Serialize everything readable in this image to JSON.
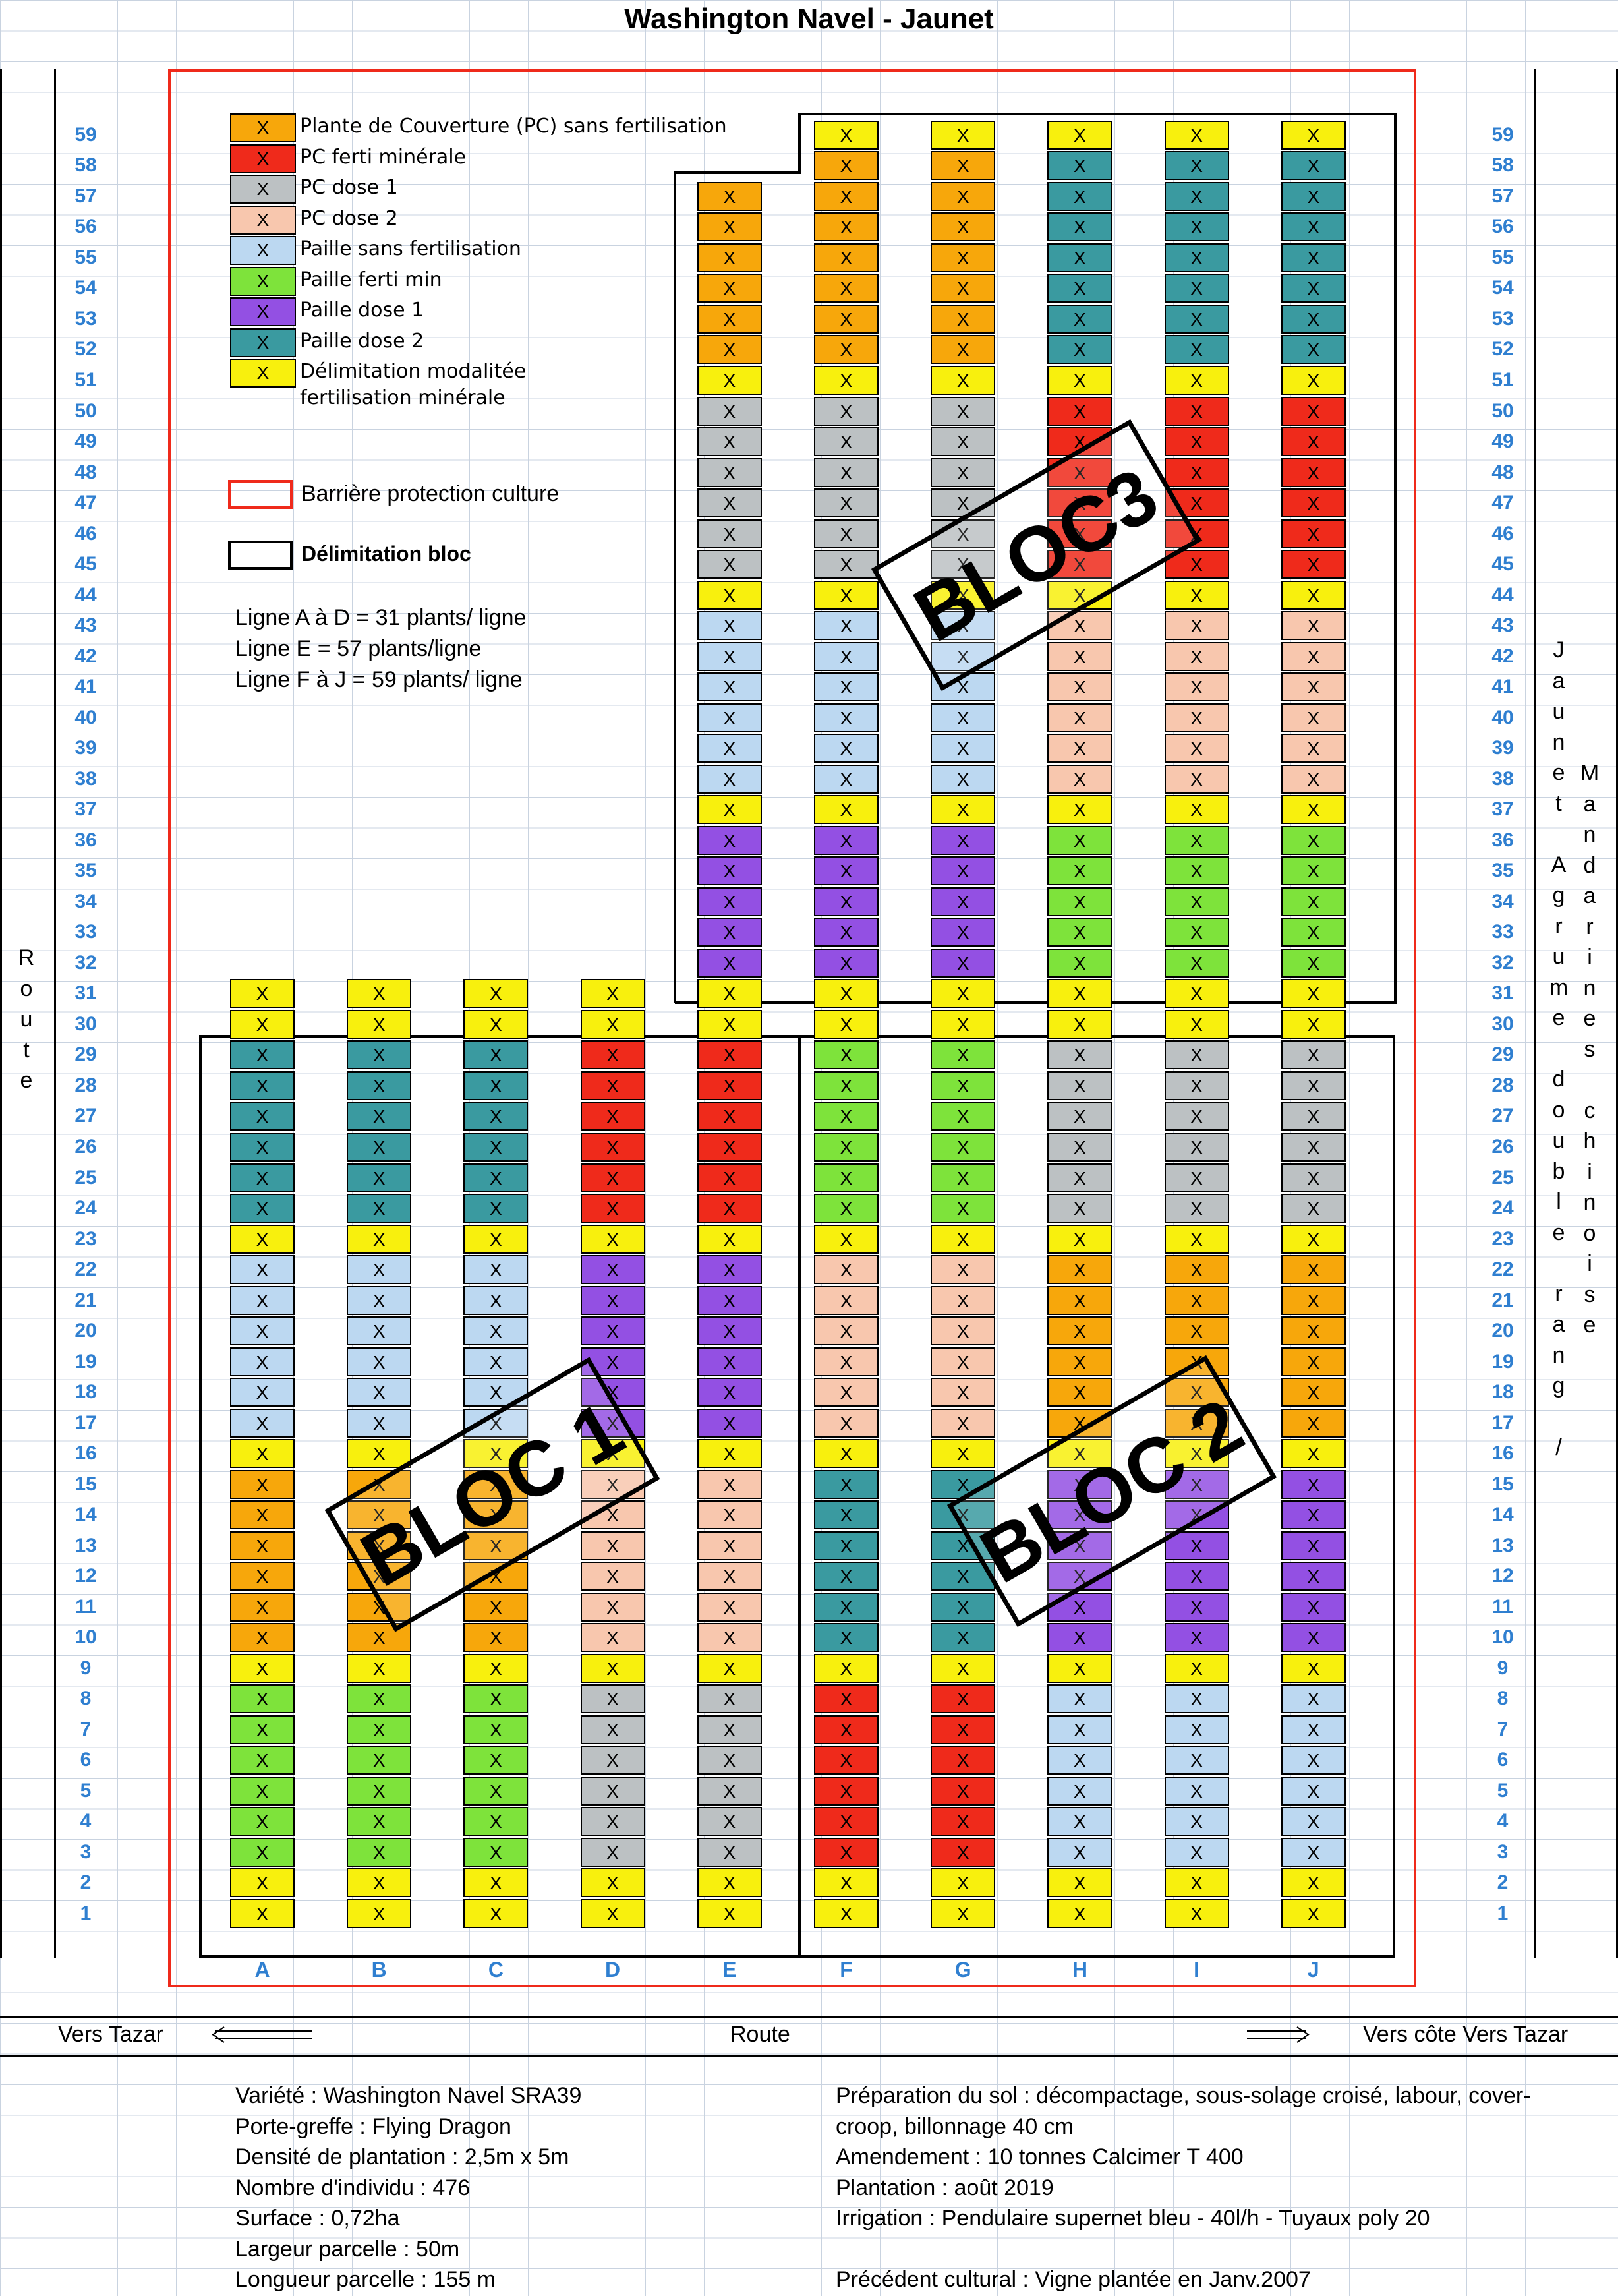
{
  "title": "Washington Navel - Jaunet",
  "colors": {
    "orange": "#f7a70b",
    "red": "#ef2a1b",
    "grey": "#bcc1c3",
    "peach": "#f8c7ae",
    "lightblue": "#bcd8f1",
    "green": "#7ee33b",
    "purple": "#9350e3",
    "teal": "#3a9aa0",
    "yellow": "#f8f00d"
  },
  "legend": [
    {
      "color": "orange",
      "mark": "X",
      "label": "Plante de Couverture (PC) sans fertilisation"
    },
    {
      "color": "red",
      "mark": "X",
      "label": "PC ferti minérale"
    },
    {
      "color": "grey",
      "mark": "X",
      "label": "PC dose 1"
    },
    {
      "color": "peach",
      "mark": "X",
      "label": "PC dose 2"
    },
    {
      "color": "lightblue",
      "mark": "X",
      "label": "Paille sans fertilisation"
    },
    {
      "color": "green",
      "mark": "X",
      "label": "Paille ferti min"
    },
    {
      "color": "purple",
      "mark": "X",
      "label": "Paille dose 1"
    },
    {
      "color": "teal",
      "mark": "X",
      "label": "Paille dose 2"
    },
    {
      "color": "yellow",
      "mark": "X",
      "label": "Délimitation modalitée"
    }
  ],
  "legend_extra": "fertilisation minérale",
  "barrier_label": "Barrière protection culture",
  "bloc_label": "Délimitation bloc",
  "notes": [
    "Ligne A à D = 31 plants/ ligne",
    "Ligne E = 57 plants/ligne",
    "Ligne F à J = 59 plants/ ligne"
  ],
  "bloc_names": [
    "BLOC 1",
    "BLOC 2",
    "BLOC3"
  ],
  "cell_mark": "X",
  "columns": [
    {
      "name": "A",
      "segments": [
        [
          1,
          2,
          "yellow"
        ],
        [
          3,
          8,
          "green"
        ],
        [
          9,
          9,
          "yellow"
        ],
        [
          10,
          15,
          "orange"
        ],
        [
          16,
          16,
          "yellow"
        ],
        [
          17,
          22,
          "lightblue"
        ],
        [
          23,
          23,
          "yellow"
        ],
        [
          24,
          29,
          "teal"
        ],
        [
          30,
          31,
          "yellow"
        ]
      ]
    },
    {
      "name": "B",
      "segments": [
        [
          1,
          2,
          "yellow"
        ],
        [
          3,
          8,
          "green"
        ],
        [
          9,
          9,
          "yellow"
        ],
        [
          10,
          15,
          "orange"
        ],
        [
          16,
          16,
          "yellow"
        ],
        [
          17,
          22,
          "lightblue"
        ],
        [
          23,
          23,
          "yellow"
        ],
        [
          24,
          29,
          "teal"
        ],
        [
          30,
          31,
          "yellow"
        ]
      ]
    },
    {
      "name": "C",
      "segments": [
        [
          1,
          2,
          "yellow"
        ],
        [
          3,
          8,
          "green"
        ],
        [
          9,
          9,
          "yellow"
        ],
        [
          10,
          15,
          "orange"
        ],
        [
          16,
          16,
          "yellow"
        ],
        [
          17,
          22,
          "lightblue"
        ],
        [
          23,
          23,
          "yellow"
        ],
        [
          24,
          29,
          "teal"
        ],
        [
          30,
          31,
          "yellow"
        ]
      ]
    },
    {
      "name": "D",
      "segments": [
        [
          1,
          2,
          "yellow"
        ],
        [
          3,
          8,
          "grey"
        ],
        [
          9,
          9,
          "yellow"
        ],
        [
          10,
          15,
          "peach"
        ],
        [
          16,
          16,
          "yellow"
        ],
        [
          17,
          22,
          "purple"
        ],
        [
          23,
          23,
          "yellow"
        ],
        [
          24,
          29,
          "red"
        ],
        [
          30,
          31,
          "yellow"
        ]
      ]
    },
    {
      "name": "E",
      "segments": [
        [
          1,
          2,
          "yellow"
        ],
        [
          3,
          8,
          "grey"
        ],
        [
          9,
          9,
          "yellow"
        ],
        [
          10,
          15,
          "peach"
        ],
        [
          16,
          16,
          "yellow"
        ],
        [
          17,
          22,
          "purple"
        ],
        [
          23,
          23,
          "yellow"
        ],
        [
          24,
          29,
          "red"
        ],
        [
          30,
          31,
          "yellow"
        ],
        [
          32,
          36,
          "purple"
        ],
        [
          37,
          37,
          "yellow"
        ],
        [
          38,
          43,
          "lightblue"
        ],
        [
          44,
          44,
          "yellow"
        ],
        [
          45,
          50,
          "grey"
        ],
        [
          51,
          51,
          "yellow"
        ],
        [
          52,
          57,
          "orange"
        ]
      ]
    },
    {
      "name": "F",
      "segments": [
        [
          1,
          2,
          "yellow"
        ],
        [
          3,
          8,
          "red"
        ],
        [
          9,
          9,
          "yellow"
        ],
        [
          10,
          15,
          "teal"
        ],
        [
          16,
          16,
          "yellow"
        ],
        [
          17,
          22,
          "peach"
        ],
        [
          23,
          23,
          "yellow"
        ],
        [
          24,
          29,
          "green"
        ],
        [
          30,
          31,
          "yellow"
        ],
        [
          32,
          36,
          "purple"
        ],
        [
          37,
          37,
          "yellow"
        ],
        [
          38,
          43,
          "lightblue"
        ],
        [
          44,
          44,
          "yellow"
        ],
        [
          45,
          50,
          "grey"
        ],
        [
          51,
          51,
          "yellow"
        ],
        [
          52,
          58,
          "orange"
        ],
        [
          59,
          59,
          "yellow"
        ]
      ]
    },
    {
      "name": "G",
      "segments": [
        [
          1,
          2,
          "yellow"
        ],
        [
          3,
          8,
          "red"
        ],
        [
          9,
          9,
          "yellow"
        ],
        [
          10,
          15,
          "teal"
        ],
        [
          16,
          16,
          "yellow"
        ],
        [
          17,
          22,
          "peach"
        ],
        [
          23,
          23,
          "yellow"
        ],
        [
          24,
          29,
          "green"
        ],
        [
          30,
          31,
          "yellow"
        ],
        [
          32,
          36,
          "purple"
        ],
        [
          37,
          37,
          "yellow"
        ],
        [
          38,
          43,
          "lightblue"
        ],
        [
          44,
          44,
          "yellow"
        ],
        [
          45,
          50,
          "grey"
        ],
        [
          51,
          51,
          "yellow"
        ],
        [
          52,
          58,
          "orange"
        ],
        [
          59,
          59,
          "yellow"
        ]
      ]
    },
    {
      "name": "H",
      "segments": [
        [
          1,
          2,
          "yellow"
        ],
        [
          3,
          8,
          "lightblue"
        ],
        [
          9,
          9,
          "yellow"
        ],
        [
          10,
          15,
          "purple"
        ],
        [
          16,
          16,
          "yellow"
        ],
        [
          17,
          22,
          "orange"
        ],
        [
          23,
          23,
          "yellow"
        ],
        [
          24,
          29,
          "grey"
        ],
        [
          30,
          31,
          "yellow"
        ],
        [
          32,
          36,
          "green"
        ],
        [
          37,
          37,
          "yellow"
        ],
        [
          38,
          43,
          "peach"
        ],
        [
          44,
          44,
          "yellow"
        ],
        [
          45,
          50,
          "red"
        ],
        [
          51,
          51,
          "yellow"
        ],
        [
          52,
          58,
          "teal"
        ],
        [
          59,
          59,
          "yellow"
        ]
      ]
    },
    {
      "name": "I",
      "segments": [
        [
          1,
          2,
          "yellow"
        ],
        [
          3,
          8,
          "lightblue"
        ],
        [
          9,
          9,
          "yellow"
        ],
        [
          10,
          15,
          "purple"
        ],
        [
          16,
          16,
          "yellow"
        ],
        [
          17,
          22,
          "orange"
        ],
        [
          23,
          23,
          "yellow"
        ],
        [
          24,
          29,
          "grey"
        ],
        [
          30,
          31,
          "yellow"
        ],
        [
          32,
          36,
          "green"
        ],
        [
          37,
          37,
          "yellow"
        ],
        [
          38,
          43,
          "peach"
        ],
        [
          44,
          44,
          "yellow"
        ],
        [
          45,
          50,
          "red"
        ],
        [
          51,
          51,
          "yellow"
        ],
        [
          52,
          58,
          "teal"
        ],
        [
          59,
          59,
          "yellow"
        ]
      ]
    },
    {
      "name": "J",
      "segments": [
        [
          1,
          2,
          "yellow"
        ],
        [
          3,
          8,
          "lightblue"
        ],
        [
          9,
          9,
          "yellow"
        ],
        [
          10,
          15,
          "purple"
        ],
        [
          16,
          16,
          "yellow"
        ],
        [
          17,
          22,
          "orange"
        ],
        [
          23,
          23,
          "yellow"
        ],
        [
          24,
          29,
          "grey"
        ],
        [
          30,
          31,
          "yellow"
        ],
        [
          32,
          36,
          "green"
        ],
        [
          37,
          37,
          "yellow"
        ],
        [
          38,
          43,
          "peach"
        ],
        [
          44,
          44,
          "yellow"
        ],
        [
          45,
          50,
          "red"
        ],
        [
          51,
          51,
          "yellow"
        ],
        [
          52,
          58,
          "teal"
        ],
        [
          59,
          59,
          "yellow"
        ]
      ]
    }
  ],
  "left_side": "Route",
  "right_side_1": "Jaunet Agrume double rang /",
  "right_side_2": "Mandarines chinoise",
  "bottom": {
    "left": "Vers Tazar",
    "center": "Route",
    "right": "Vers côte Vers Tazar"
  },
  "info_left": [
    "Variété : Washington Navel SRA39",
    "Porte-greffe : Flying Dragon",
    "Densité de plantation : 2,5m x 5m",
    "Nombre d'individu : 476",
    "Surface : 0,72ha",
    "Largeur parcelle : 50m",
    "Longueur parcelle : 155 m"
  ],
  "info_right": [
    "Préparation du sol : décompactage, sous-solage croisé, labour, cover-",
    "croop, billonnage 40 cm",
    "Amendement : 10 tonnes Calcimer T 400",
    "Plantation : août 2019",
    "Irrigation : Pendulaire supernet bleu  - 40l/h - Tuyaux poly 20",
    "",
    "Précédent cultural : Vigne plantée en Janv.2007"
  ]
}
